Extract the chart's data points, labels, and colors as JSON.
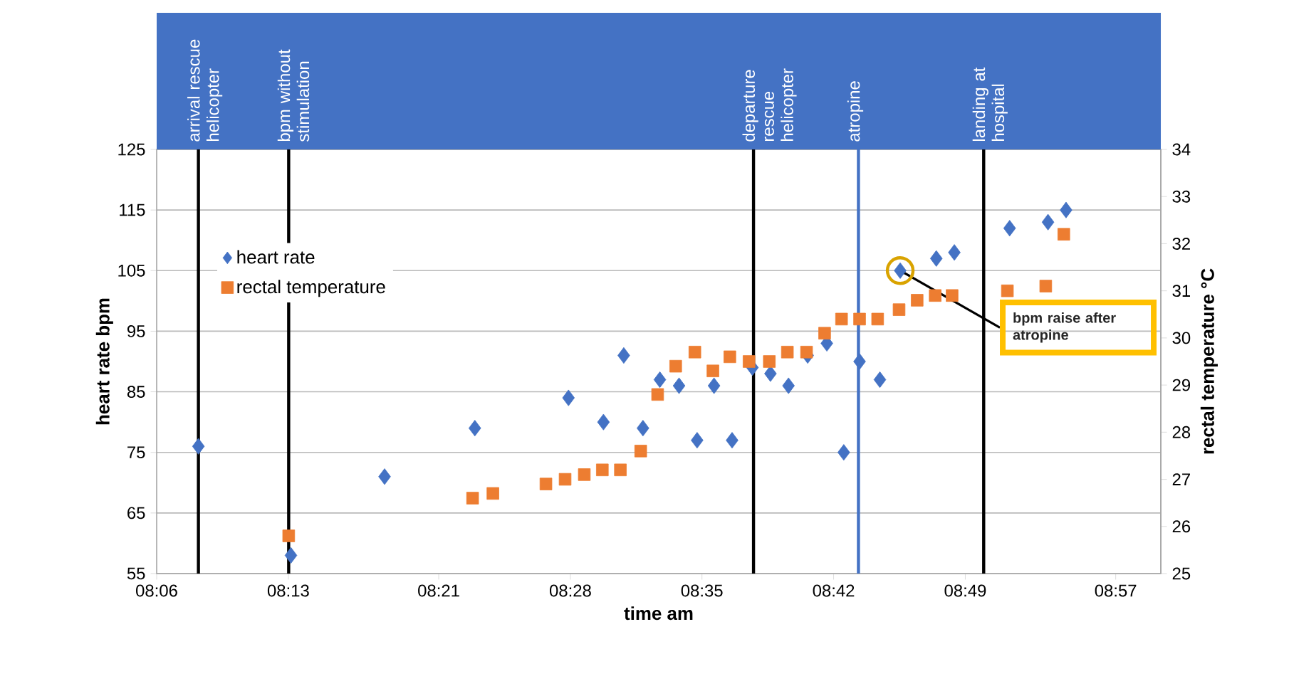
{
  "chart_data": {
    "type": "scatter",
    "xlabel": "time am",
    "ylabel": "heart rate bpm",
    "y2label": "rectal temperature °C",
    "xlim": [
      8.1,
      8.99
    ],
    "xticks": [
      {
        "value": 8.1,
        "label": "08:06"
      },
      {
        "value": 8.2167,
        "label": "08:13"
      },
      {
        "value": 8.35,
        "label": "08:21"
      },
      {
        "value": 8.4667,
        "label": "08:28"
      },
      {
        "value": 8.5833,
        "label": "08:35"
      },
      {
        "value": 8.7,
        "label": "08:42"
      },
      {
        "value": 8.8167,
        "label": "08:49"
      },
      {
        "value": 8.95,
        "label": "08:57"
      }
    ],
    "ylim": [
      55,
      125
    ],
    "yticks": [
      55,
      65,
      75,
      85,
      95,
      105,
      115,
      125
    ],
    "y2lim": [
      25,
      34
    ],
    "y2ticks": [
      25,
      26,
      27,
      28,
      29,
      30,
      31,
      32,
      33,
      34
    ],
    "grid": "y",
    "legend": "top left",
    "series": [
      {
        "name": "heart rate",
        "color": "#4472c4",
        "marker": "diamond",
        "x": [
          8.137,
          8.219,
          8.302,
          8.382,
          8.465,
          8.496,
          8.514,
          8.531,
          8.546,
          8.563,
          8.579,
          8.594,
          8.61,
          8.628,
          8.644,
          8.66,
          8.677,
          8.694,
          8.709,
          8.723,
          8.741,
          8.759,
          8.791,
          8.807,
          8.856,
          8.89,
          8.906
        ],
        "values": [
          76,
          58,
          71,
          79,
          84,
          80,
          91,
          79,
          87,
          86,
          77,
          86,
          77,
          89,
          88,
          86,
          91,
          93,
          75,
          90,
          87,
          105,
          107,
          108,
          112,
          113,
          115
        ]
      },
      {
        "name": "rectal temperature",
        "color": "#ed7d31",
        "marker": "square",
        "axis": "y2",
        "x": [
          8.217,
          8.38,
          8.398,
          8.445,
          8.462,
          8.479,
          8.495,
          8.511,
          8.529,
          8.544,
          8.56,
          8.577,
          8.593,
          8.608,
          8.625,
          8.643,
          8.659,
          8.676,
          8.692,
          8.707,
          8.723,
          8.739,
          8.758,
          8.774,
          8.79,
          8.805,
          8.854,
          8.888,
          8.904
        ],
        "values": [
          25.8,
          26.6,
          26.7,
          26.9,
          27.0,
          27.1,
          27.2,
          27.2,
          27.6,
          28.8,
          29.4,
          29.7,
          29.3,
          29.6,
          29.5,
          29.5,
          29.7,
          29.7,
          30.1,
          30.4,
          30.4,
          30.4,
          30.6,
          30.8,
          30.9,
          30.9,
          31.0,
          31.1,
          32.2
        ]
      }
    ],
    "ref_lines": [
      {
        "axis": "x",
        "value": 8.137,
        "label": "arrival rescue helicopter",
        "color": "#000000"
      },
      {
        "axis": "x",
        "value": 8.217,
        "label": "bpm without stimulation",
        "color": "#000000"
      },
      {
        "axis": "x",
        "value": 8.629,
        "label": "departure rescue helicopter",
        "color": "#000000"
      },
      {
        "axis": "x",
        "value": 8.722,
        "label": "atropine",
        "color": "#4472c4"
      },
      {
        "axis": "x",
        "value": 8.833,
        "label": "landing at hospital",
        "color": "#000000"
      }
    ],
    "annotations": [
      {
        "text": "bpm raise after atropine",
        "x": 8.759,
        "y": 105
      }
    ]
  }
}
